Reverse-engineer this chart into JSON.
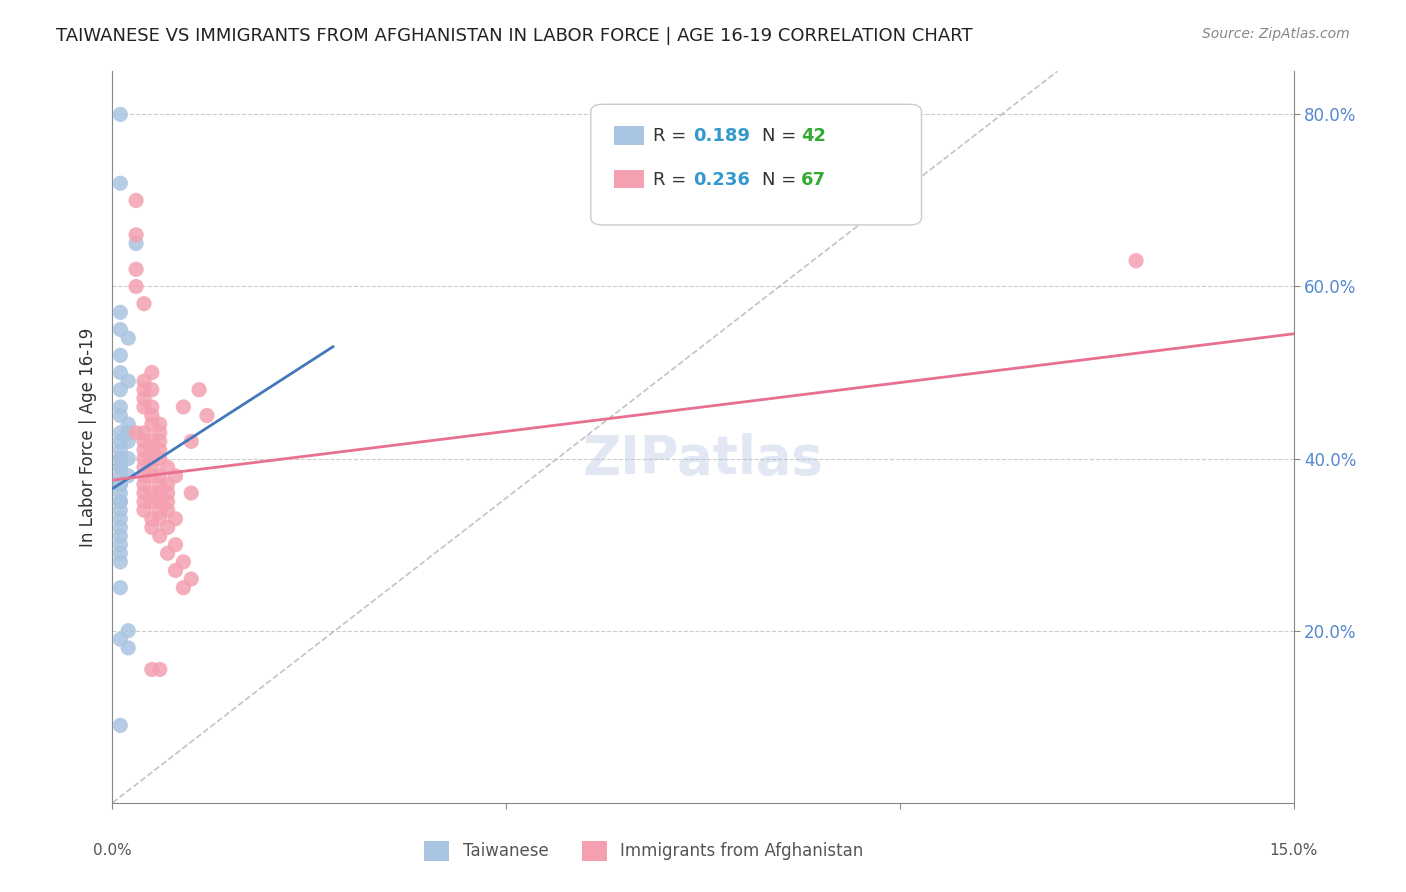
{
  "title": "TAIWANESE VS IMMIGRANTS FROM AFGHANISTAN IN LABOR FORCE | AGE 16-19 CORRELATION CHART",
  "source": "Source: ZipAtlas.com",
  "ylabel": "In Labor Force | Age 16-19",
  "xlim": [
    0.0,
    0.15
  ],
  "ylim": [
    0.0,
    0.85
  ],
  "taiwanese_color": "#a8c4e0",
  "afghan_color": "#f4a0b0",
  "trend_blue": "#4477bb",
  "trend_pink": "#e87090",
  "watermark": "ZIPatlas",
  "background_color": "#ffffff",
  "grid_color": "#cccccc",
  "taiwanese_points": [
    [
      0.001,
      0.8
    ],
    [
      0.001,
      0.72
    ],
    [
      0.003,
      0.65
    ],
    [
      0.001,
      0.57
    ],
    [
      0.001,
      0.55
    ],
    [
      0.002,
      0.54
    ],
    [
      0.001,
      0.52
    ],
    [
      0.001,
      0.5
    ],
    [
      0.002,
      0.49
    ],
    [
      0.001,
      0.48
    ],
    [
      0.001,
      0.46
    ],
    [
      0.001,
      0.45
    ],
    [
      0.002,
      0.44
    ],
    [
      0.001,
      0.43
    ],
    [
      0.002,
      0.43
    ],
    [
      0.001,
      0.42
    ],
    [
      0.002,
      0.42
    ],
    [
      0.001,
      0.41
    ],
    [
      0.001,
      0.4
    ],
    [
      0.002,
      0.4
    ],
    [
      0.001,
      0.4
    ],
    [
      0.001,
      0.39
    ],
    [
      0.001,
      0.39
    ],
    [
      0.002,
      0.38
    ],
    [
      0.001,
      0.38
    ],
    [
      0.001,
      0.37
    ],
    [
      0.001,
      0.37
    ],
    [
      0.001,
      0.36
    ],
    [
      0.001,
      0.35
    ],
    [
      0.001,
      0.35
    ],
    [
      0.001,
      0.34
    ],
    [
      0.001,
      0.33
    ],
    [
      0.001,
      0.32
    ],
    [
      0.001,
      0.31
    ],
    [
      0.001,
      0.3
    ],
    [
      0.001,
      0.29
    ],
    [
      0.001,
      0.28
    ],
    [
      0.001,
      0.25
    ],
    [
      0.002,
      0.2
    ],
    [
      0.001,
      0.19
    ],
    [
      0.002,
      0.18
    ],
    [
      0.001,
      0.09
    ]
  ],
  "afghan_points": [
    [
      0.003,
      0.7
    ],
    [
      0.003,
      0.66
    ],
    [
      0.003,
      0.62
    ],
    [
      0.003,
      0.6
    ],
    [
      0.004,
      0.58
    ],
    [
      0.005,
      0.5
    ],
    [
      0.004,
      0.49
    ],
    [
      0.004,
      0.48
    ],
    [
      0.005,
      0.48
    ],
    [
      0.004,
      0.47
    ],
    [
      0.004,
      0.46
    ],
    [
      0.005,
      0.46
    ],
    [
      0.005,
      0.45
    ],
    [
      0.005,
      0.44
    ],
    [
      0.006,
      0.44
    ],
    [
      0.003,
      0.43
    ],
    [
      0.004,
      0.43
    ],
    [
      0.006,
      0.43
    ],
    [
      0.004,
      0.42
    ],
    [
      0.005,
      0.42
    ],
    [
      0.006,
      0.42
    ],
    [
      0.004,
      0.41
    ],
    [
      0.005,
      0.41
    ],
    [
      0.006,
      0.41
    ],
    [
      0.004,
      0.4
    ],
    [
      0.005,
      0.4
    ],
    [
      0.006,
      0.4
    ],
    [
      0.004,
      0.39
    ],
    [
      0.005,
      0.39
    ],
    [
      0.007,
      0.39
    ],
    [
      0.004,
      0.38
    ],
    [
      0.005,
      0.38
    ],
    [
      0.006,
      0.38
    ],
    [
      0.004,
      0.37
    ],
    [
      0.006,
      0.37
    ],
    [
      0.007,
      0.37
    ],
    [
      0.004,
      0.36
    ],
    [
      0.005,
      0.36
    ],
    [
      0.006,
      0.36
    ],
    [
      0.004,
      0.35
    ],
    [
      0.005,
      0.35
    ],
    [
      0.007,
      0.35
    ],
    [
      0.004,
      0.34
    ],
    [
      0.006,
      0.34
    ],
    [
      0.007,
      0.34
    ],
    [
      0.005,
      0.33
    ],
    [
      0.006,
      0.33
    ],
    [
      0.008,
      0.33
    ],
    [
      0.005,
      0.32
    ],
    [
      0.007,
      0.32
    ],
    [
      0.008,
      0.38
    ],
    [
      0.006,
      0.31
    ],
    [
      0.008,
      0.3
    ],
    [
      0.009,
      0.46
    ],
    [
      0.007,
      0.29
    ],
    [
      0.009,
      0.28
    ],
    [
      0.01,
      0.42
    ],
    [
      0.008,
      0.27
    ],
    [
      0.01,
      0.36
    ],
    [
      0.01,
      0.26
    ],
    [
      0.009,
      0.25
    ],
    [
      0.011,
      0.48
    ],
    [
      0.012,
      0.45
    ],
    [
      0.005,
      0.155
    ],
    [
      0.006,
      0.155
    ],
    [
      0.13,
      0.63
    ],
    [
      0.006,
      0.35
    ],
    [
      0.007,
      0.36
    ]
  ]
}
